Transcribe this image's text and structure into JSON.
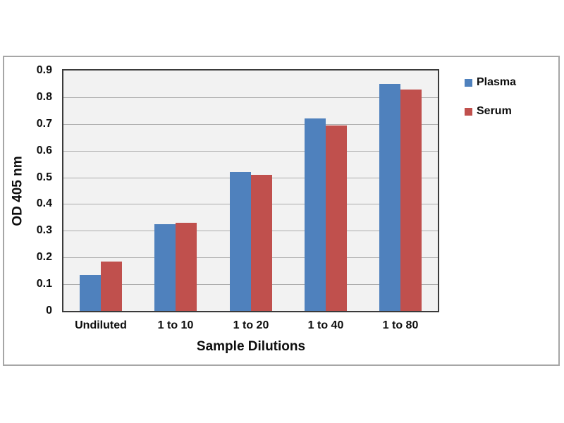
{
  "chart_data": {
    "type": "bar",
    "title": "",
    "xlabel": "Sample Dilutions",
    "ylabel": "OD 405 nm",
    "categories": [
      "Undiluted",
      "1 to 10",
      "1 to 20",
      "1 to 40",
      "1 to 80"
    ],
    "series": [
      {
        "name": "Plasma",
        "color": "#4f81bd",
        "values": [
          0.135,
          0.325,
          0.52,
          0.72,
          0.85
        ]
      },
      {
        "name": "Serum",
        "color": "#c0504d",
        "values": [
          0.185,
          0.33,
          0.51,
          0.695,
          0.83
        ]
      }
    ],
    "ylim": [
      0,
      0.9
    ],
    "ytick_step": 0.1,
    "grid": true,
    "legend_position": "right",
    "colors": {
      "plot_background": "#f2f2f2",
      "gridline": "#ababab",
      "plot_border": "#3a3a3a",
      "figure_border": "#a6a6a6",
      "text": "#0d0d0d"
    }
  }
}
